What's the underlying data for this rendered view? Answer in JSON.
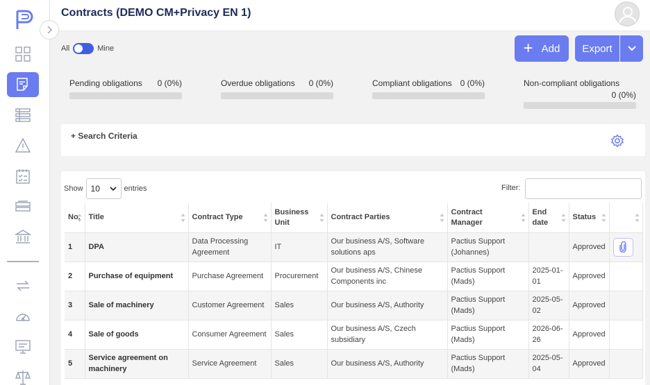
{
  "header": {
    "title": "Contracts (DEMO CM+Privacy EN 1)"
  },
  "sidebar": {
    "items": [
      {
        "icon": "dashboard-grid-icon"
      },
      {
        "icon": "contracts-icon",
        "active": true
      },
      {
        "icon": "list-icon"
      },
      {
        "icon": "warning-icon"
      },
      {
        "icon": "calendar-checklist-icon"
      },
      {
        "icon": "stack-icon"
      },
      {
        "icon": "bank-icon"
      },
      {
        "icon": "arrows-exchange-icon"
      },
      {
        "icon": "gauge-icon"
      },
      {
        "icon": "monitor-icon"
      },
      {
        "icon": "scales-icon"
      }
    ]
  },
  "toolbar": {
    "toggle_left": "All",
    "toggle_right": "Mine",
    "add_label": "Add",
    "export_label": "Export"
  },
  "obligations": [
    {
      "label": "Pending obligations",
      "value": "0 (0%)"
    },
    {
      "label": "Overdue obligations",
      "value": "0 (0%)"
    },
    {
      "label": "Compliant obligations",
      "value": "0 (0%)"
    },
    {
      "label": "Non-compliant obligations",
      "value": "0 (0%)"
    }
  ],
  "search": {
    "label": "+ Search Criteria"
  },
  "table": {
    "show_label": "Show",
    "page_size": "10",
    "entries_label": "entries",
    "filter_label": "Filter:",
    "columns": [
      "No.",
      "Title",
      "Contract Type",
      "Business Unit",
      "Contract Parties",
      "Contract Manager",
      "End date",
      "Status",
      ""
    ],
    "rows": [
      {
        "no": "1",
        "title": "DPA",
        "type": "Data Processing Agreement",
        "unit": "IT",
        "parties": "Our business A/S, Software solutions aps",
        "manager": "Pactius Support (Johannes)",
        "end": "",
        "status": "Approved",
        "attachment": true
      },
      {
        "no": "2",
        "title": "Purchase of equipment",
        "type": "Purchase Agreement",
        "unit": "Procurement",
        "parties": "Our business A/S, Chinese Components inc",
        "manager": "Pactius Support (Mads)",
        "end": "2025-01-01",
        "status": "Approved",
        "attachment": false
      },
      {
        "no": "3",
        "title": "Sale of machinery",
        "type": "Customer Agreement",
        "unit": "Sales",
        "parties": "Our business A/S, Authority",
        "manager": "Pactius Support (Mads)",
        "end": "2025-05-02",
        "status": "Approved",
        "attachment": false
      },
      {
        "no": "4",
        "title": "Sale of goods",
        "type": "Consumer Agreement",
        "unit": "Sales",
        "parties": "Our business A/S, Czech subsidiary",
        "manager": "Pactius Support (Mads)",
        "end": "2026-06-26",
        "status": "Approved",
        "attachment": false
      },
      {
        "no": "5",
        "title": "Service agreement on machinery",
        "type": "Service Agreement",
        "unit": "Sales",
        "parties": "Our business A/S, Authority",
        "manager": "Pactius Support (Mads)",
        "end": "2025-05-04",
        "status": "Approved",
        "attachment": false
      }
    ]
  },
  "colors": {
    "accent": "#6a7cf0",
    "toggle": "#3f5fe0",
    "title": "#1e2a5a"
  }
}
